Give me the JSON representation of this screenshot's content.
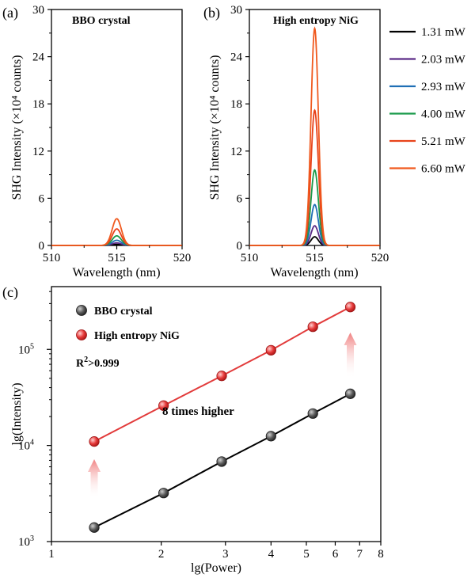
{
  "panels": {
    "a": {
      "label": "(a)"
    },
    "b": {
      "label": "(b)"
    },
    "c": {
      "label": "(c)"
    }
  },
  "colors": {
    "series": [
      "#000000",
      "#5b2a86",
      "#1f6fb5",
      "#1a9a4b",
      "#e8431b",
      "#f05a1f"
    ],
    "bbo_marker": "#444444",
    "nig_marker": "#e23b3b",
    "nig_line": "#e23b3b",
    "arrow": "#f4a3a3"
  },
  "chart_data": [
    {
      "id": "a",
      "type": "line",
      "title": "BBO crystal",
      "xlabel": "Wavelength  (nm)",
      "ylabel": "SHG Intensity (×10⁴ counts)",
      "xlim": [
        510,
        520
      ],
      "ylim": [
        0,
        30
      ],
      "xticks": [
        510,
        515,
        520
      ],
      "yticks": [
        0,
        6,
        12,
        18,
        24,
        30
      ],
      "peak_center": 515,
      "peak_width": 0.35,
      "series": [
        {
          "name": "1.31 mW",
          "peak": 0.14
        },
        {
          "name": "2.03 mW",
          "peak": 0.32
        },
        {
          "name": "2.93 mW",
          "peak": 0.66
        },
        {
          "name": "4.00 mW",
          "peak": 1.22
        },
        {
          "name": "5.21 mW",
          "peak": 2.1
        },
        {
          "name": "6.60 mW",
          "peak": 3.4
        }
      ]
    },
    {
      "id": "b",
      "type": "line",
      "title": "High entropy NiG",
      "xlabel": "Wavelength  (nm)",
      "ylabel": "SHG Intensity (×10⁴ counts)",
      "xlim": [
        510,
        520
      ],
      "ylim": [
        0,
        30
      ],
      "xticks": [
        510,
        515,
        520
      ],
      "yticks": [
        0,
        6,
        12,
        18,
        24,
        30
      ],
      "peak_center": 515,
      "peak_width": 0.28,
      "series": [
        {
          "name": "1.31 mW",
          "peak": 1.1
        },
        {
          "name": "2.03 mW",
          "peak": 2.5
        },
        {
          "name": "2.93 mW",
          "peak": 5.2
        },
        {
          "name": "4.00 mW",
          "peak": 9.6
        },
        {
          "name": "5.21 mW",
          "peak": 17.2
        },
        {
          "name": "6.60 mW",
          "peak": 27.6
        }
      ]
    },
    {
      "id": "c",
      "type": "scatter",
      "xscale": "log",
      "yscale": "log",
      "xlabel": "lg(Power)",
      "ylabel": "lg(Intensity)",
      "xlim": [
        1,
        8
      ],
      "ylim": [
        1000,
        450000
      ],
      "xticks": [
        1,
        2,
        3,
        4,
        5,
        6,
        7,
        8
      ],
      "yticks": [
        {
          "value": 1000,
          "base": "10",
          "exp": "3"
        },
        {
          "value": 10000,
          "base": "10",
          "exp": "4"
        },
        {
          "value": 100000,
          "base": "10",
          "exp": "5"
        }
      ],
      "series": [
        {
          "name": "BBO crystal",
          "x": [
            1.31,
            2.03,
            2.93,
            4.0,
            5.21,
            6.6
          ],
          "y": [
            1400,
            3200,
            6800,
            12500,
            21500,
            34500
          ]
        },
        {
          "name": "High entropy NiG",
          "x": [
            1.31,
            2.03,
            2.93,
            4.0,
            5.21,
            6.6
          ],
          "y": [
            11000,
            26000,
            53000,
            98000,
            172000,
            276000
          ]
        }
      ],
      "annotations": {
        "r2": {
          "base": "R",
          "sup": "2",
          "rest": ">0.999"
        },
        "ratio": "8 times higher"
      }
    }
  ]
}
